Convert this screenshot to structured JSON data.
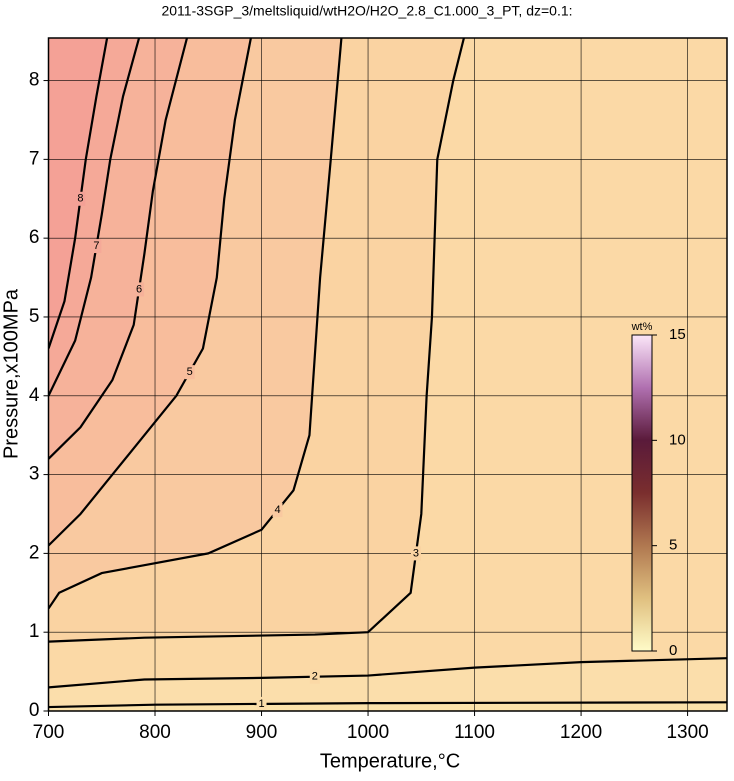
{
  "chart_data": {
    "type": "contour",
    "title": "2011-3SGP_3/meltsliquid/wtH2O/H2O_2.8_C1.000_3_PT, dz=0.1:",
    "x_label": "Temperature,°C",
    "y_label": "Pressure,x100MPa",
    "xlim": [
      700,
      1337
    ],
    "ylim": [
      0,
      8.54
    ],
    "xticks": [
      700,
      800,
      900,
      1000,
      1100,
      1200,
      1300
    ],
    "yticks": [
      0,
      1,
      2,
      3,
      4,
      5,
      6,
      7,
      8
    ],
    "grid": true,
    "background": "#fbe2aa",
    "series": [
      {
        "name": "1",
        "color": "#000000",
        "fill": "#fbdeab",
        "x": [
          700,
          800,
          1000,
          1337
        ],
        "y": [
          0.05,
          0.08,
          0.1,
          0.11
        ]
      },
      {
        "name": "2",
        "color": "#000000",
        "fill": "#fbd9a6",
        "x": [
          700,
          790,
          900,
          1000,
          1100,
          1200,
          1337
        ],
        "y": [
          0.3,
          0.4,
          0.42,
          0.45,
          0.55,
          0.62,
          0.67
        ]
      },
      {
        "name": "3",
        "color": "#000000",
        "fill": "#fad3a2",
        "x": [
          700,
          790,
          950,
          1000,
          1040,
          1050,
          1055,
          1060,
          1065,
          1080,
          1090
        ],
        "y": [
          0.88,
          0.93,
          0.97,
          1.0,
          1.5,
          2.5,
          4,
          5,
          7,
          8,
          8.54
        ]
      },
      {
        "name": "4",
        "color": "#000000",
        "fill": "#f9c9a0",
        "x": [
          700,
          710,
          750,
          790,
          850,
          900,
          930,
          945,
          950,
          955,
          965,
          975
        ],
        "y": [
          1.3,
          1.5,
          1.75,
          1.85,
          2.0,
          2.3,
          2.8,
          3.5,
          4.5,
          5.5,
          7,
          8.54
        ]
      },
      {
        "name": "5",
        "color": "#000000",
        "fill": "#f8bd9c",
        "x": [
          700,
          730,
          760,
          790,
          820,
          845,
          858,
          865,
          875,
          890
        ],
        "y": [
          2.1,
          2.5,
          3.0,
          3.5,
          4.0,
          4.6,
          5.5,
          6.5,
          7.5,
          8.54
        ]
      },
      {
        "name": "6",
        "color": "#000000",
        "fill": "#f6b29a",
        "x": [
          700,
          730,
          760,
          780,
          790,
          798,
          810,
          830
        ],
        "y": [
          3.2,
          3.6,
          4.2,
          4.9,
          5.8,
          6.6,
          7.5,
          8.54
        ]
      },
      {
        "name": "7",
        "color": "#000000",
        "fill": "#f5a998",
        "x": [
          700,
          725,
          740,
          750,
          758,
          770,
          785
        ],
        "y": [
          4.0,
          4.7,
          5.5,
          6.3,
          7.0,
          7.8,
          8.54
        ]
      },
      {
        "name": "8",
        "color": "#000000",
        "fill": "#f4a196",
        "x": [
          700,
          715,
          725,
          735,
          745,
          755
        ],
        "y": [
          4.6,
          5.2,
          6.0,
          7.0,
          7.8,
          8.54
        ]
      }
    ],
    "colorbar": {
      "label": "wt%",
      "clim": [
        0,
        15
      ],
      "ticks": [
        0,
        5,
        10,
        15
      ],
      "colors": [
        "#fffbc8",
        "#e0c080",
        "#b07850",
        "#7a2e2e",
        "#5a1a3a",
        "#b070b0",
        "#fbe6f8"
      ]
    }
  }
}
